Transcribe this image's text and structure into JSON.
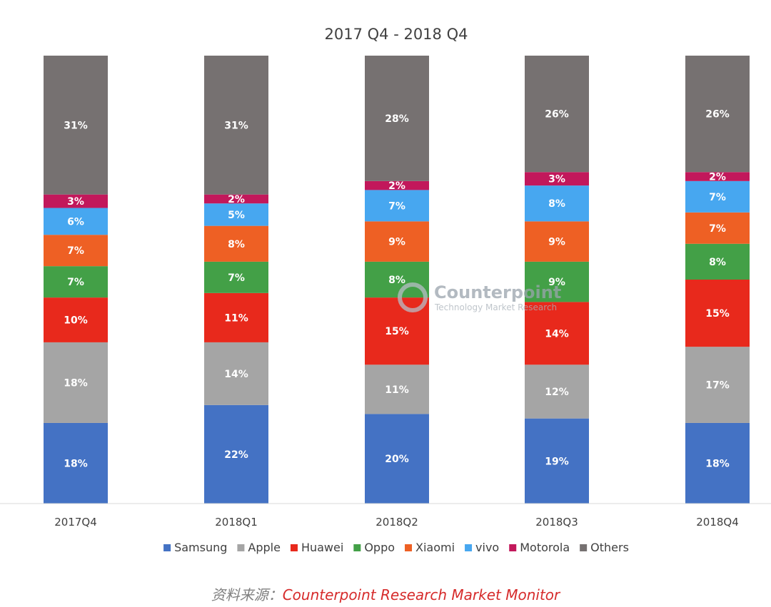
{
  "chart_data": {
    "type": "bar",
    "stacked": true,
    "normalized": true,
    "title": "2017 Q4 - 2018 Q4",
    "categories": [
      "2017Q4",
      "2018Q1",
      "2018Q2",
      "2018Q3",
      "2018Q4"
    ],
    "series": [
      {
        "name": "Samsung",
        "color": "#4472c4",
        "values": [
          18,
          22,
          20,
          19,
          18
        ],
        "labels": [
          "18%",
          "22%",
          "20%",
          "19%",
          "18%"
        ]
      },
      {
        "name": "Apple",
        "color": "#a5a5a5",
        "values": [
          18,
          14,
          11,
          12,
          17
        ],
        "labels": [
          "18%",
          "14%",
          "11%",
          "12%",
          "17%"
        ]
      },
      {
        "name": "Huawei",
        "color": "#e8291c",
        "values": [
          10,
          11,
          15,
          14,
          15
        ],
        "labels": [
          "10%",
          "11%",
          "15%",
          "14%",
          "15%"
        ]
      },
      {
        "name": "Oppo",
        "color": "#43a047",
        "values": [
          7,
          7,
          8,
          9,
          8
        ],
        "labels": [
          "7%",
          "7%",
          "8%",
          "9%",
          "8%"
        ]
      },
      {
        "name": "Xiaomi",
        "color": "#ee6024",
        "values": [
          7,
          8,
          9,
          9,
          7
        ],
        "labels": [
          "7%",
          "8%",
          "9%",
          "9%",
          "7%"
        ]
      },
      {
        "name": "vivo",
        "color": "#47a7f0",
        "values": [
          6,
          5,
          7,
          8,
          7
        ],
        "labels": [
          "6%",
          "5%",
          "7%",
          "8%",
          "7%"
        ]
      },
      {
        "name": "Motorola",
        "color": "#c2185b",
        "values": [
          3,
          2,
          2,
          3,
          2
        ],
        "labels": [
          "3%",
          "2%",
          "2%",
          "3%",
          "2%"
        ]
      },
      {
        "name": "Others",
        "color": "#767171",
        "values": [
          31,
          31,
          28,
          26,
          26
        ],
        "labels": [
          "31%",
          "31%",
          "28%",
          "26%",
          "26%"
        ]
      }
    ],
    "legend_position": "bottom",
    "grid": false
  },
  "watermark": {
    "name": "Counterpoint",
    "tagline": "Technology Market Research"
  },
  "source": {
    "prefix": "资料来源：",
    "text": "Counterpoint Research Market Monitor"
  }
}
